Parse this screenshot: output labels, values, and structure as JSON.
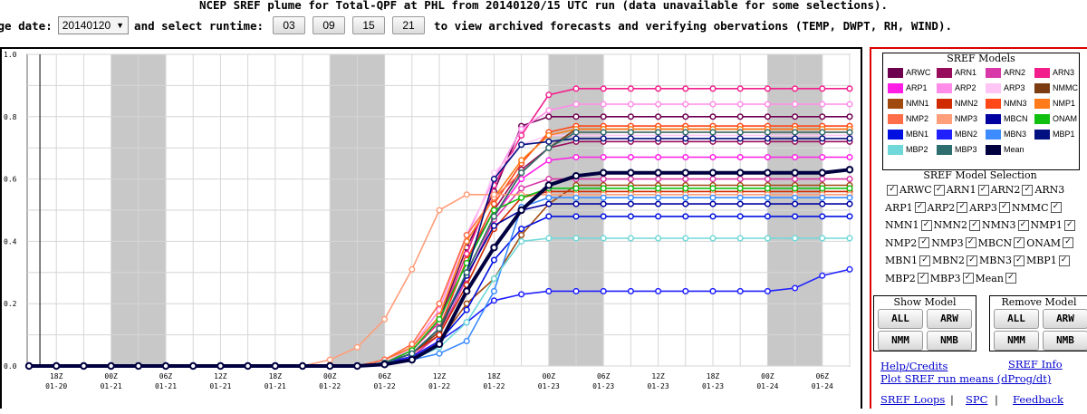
{
  "header": {
    "title": "NCEP SREF plume for Total-QPF at PHL from 20140120/15 UTC run (data unavailable for some selections).",
    "change_date_label": "nge date:",
    "date_value": "20140120",
    "select_runtime_label": "and select runtime:",
    "runtimes": [
      "03",
      "09",
      "15",
      "21"
    ],
    "view_text": "to view archived forecasts and verifying obervations (TEMP, DWPT, RH, WIND)."
  },
  "panel": {
    "models_title": "SREF Models",
    "models": [
      {
        "n": "ARWC",
        "c": "#6e0050"
      },
      {
        "n": "ARN1",
        "c": "#980c5c"
      },
      {
        "n": "ARN2",
        "c": "#d838a8"
      },
      {
        "n": "ARN3",
        "c": "#f21e8c"
      },
      {
        "n": "ARP1",
        "c": "#ff1ee6"
      },
      {
        "n": "ARP2",
        "c": "#ff8ce8"
      },
      {
        "n": "ARP3",
        "c": "#ffc6f5"
      },
      {
        "n": "NMMC",
        "c": "#7a3c10"
      },
      {
        "n": "NMN1",
        "c": "#a04a10"
      },
      {
        "n": "NMN2",
        "c": "#d02a00"
      },
      {
        "n": "NMN3",
        "c": "#ff4818"
      },
      {
        "n": "NMP1",
        "c": "#ff7a18"
      },
      {
        "n": "NMP2",
        "c": "#ff6e48"
      },
      {
        "n": "NMP3",
        "c": "#ff9e7a"
      },
      {
        "n": "MBCN",
        "c": "#0000a0"
      },
      {
        "n": "ONAM",
        "c": "#10c010"
      },
      {
        "n": "MBN1",
        "c": "#0010e0"
      },
      {
        "n": "MBN2",
        "c": "#2020ff"
      },
      {
        "n": "MBN3",
        "c": "#3c8cff"
      },
      {
        "n": "MBP1",
        "c": "#001080"
      },
      {
        "n": "MBP2",
        "c": "#70d8d8"
      },
      {
        "n": "MBP3",
        "c": "#2e6e6e"
      },
      {
        "n": "Mean",
        "c": "#000040"
      }
    ],
    "selection_title": "SREF Model Selection",
    "selection_rows": [
      [
        "ARWC",
        "ARN1",
        "ARN2",
        "ARN3"
      ],
      [
        "ARP1",
        "ARP2",
        "ARP3",
        "NMMC"
      ],
      [
        "NMN1",
        "NMN2",
        "NMN3",
        "NMP1"
      ],
      [
        "NMP2",
        "NMP3",
        "MBCN",
        "ONAM"
      ],
      [
        "MBN1",
        "MBN2",
        "MBN3",
        "MBP1"
      ],
      [
        "MBP2",
        "MBP3",
        "Mean"
      ]
    ],
    "show_model": {
      "title": "Show Model",
      "buttons": [
        "ALL",
        "ARW",
        "NMM",
        "NMB"
      ]
    },
    "remove_model": {
      "title": "Remove Model",
      "buttons": [
        "ALL",
        "ARW",
        "NMM",
        "NMB"
      ]
    },
    "links": {
      "help": "Help/Credits",
      "sref_info": "SREF Info",
      "run_means": "Plot SREF run means (dProg/dt)",
      "loops": "SREF Loops",
      "spc": "SPC",
      "feedback": "Feedback",
      "sep": "|"
    }
  },
  "chart_data": {
    "type": "line",
    "ylim": [
      0,
      1.0
    ],
    "yticks": [
      "0.0",
      "0.2",
      "0.4",
      "0.6",
      "0.8",
      "1.0"
    ],
    "xticks": [
      {
        "t": "18Z",
        "d": "01-20"
      },
      {
        "t": "00Z",
        "d": "01-21"
      },
      {
        "t": "06Z",
        "d": "01-21"
      },
      {
        "t": "12Z",
        "d": "01-21"
      },
      {
        "t": "18Z",
        "d": "01-21"
      },
      {
        "t": "00Z",
        "d": "01-22"
      },
      {
        "t": "06Z",
        "d": "01-22"
      },
      {
        "t": "12Z",
        "d": "01-22"
      },
      {
        "t": "18Z",
        "d": "01-22"
      },
      {
        "t": "00Z",
        "d": "01-23"
      },
      {
        "t": "06Z",
        "d": "01-23"
      },
      {
        "t": "12Z",
        "d": "01-23"
      },
      {
        "t": "18Z",
        "d": "01-23"
      },
      {
        "t": "00Z",
        "d": "01-24"
      },
      {
        "t": "06Z",
        "d": "01-24"
      }
    ],
    "x_hours": [
      0,
      3,
      6,
      9,
      12,
      15,
      18,
      21,
      24,
      27,
      30,
      33,
      36,
      39,
      42,
      45,
      48,
      51,
      54,
      57,
      60,
      63,
      66,
      69,
      72,
      75,
      78,
      81,
      84,
      87
    ],
    "shaded_bands": [
      [
        6,
        12
      ],
      [
        30,
        36
      ],
      [
        54,
        60
      ],
      [
        78,
        84
      ]
    ],
    "series": [
      {
        "name": "ARWC",
        "color": "#6e0050",
        "rise": [
          0,
          0,
          0.01,
          0.05,
          0.15,
          0.38,
          0.56,
          0.77,
          0.8
        ],
        "final": 0.8
      },
      {
        "name": "ARN1",
        "color": "#980c5c",
        "rise": [
          0,
          0,
          0.01,
          0.04,
          0.12,
          0.34,
          0.5,
          0.63,
          0.7
        ],
        "final": 0.72
      },
      {
        "name": "ARN2",
        "color": "#d838a8",
        "rise": [
          0,
          0,
          0.01,
          0.03,
          0.1,
          0.28,
          0.47,
          0.57,
          0.6
        ],
        "final": 0.6
      },
      {
        "name": "ARN3",
        "color": "#f21e8c",
        "rise": [
          0,
          0,
          0.01,
          0.05,
          0.14,
          0.36,
          0.58,
          0.74,
          0.87,
          0.89
        ],
        "final": 0.89
      },
      {
        "name": "ARP1",
        "color": "#ff1ee6",
        "rise": [
          0,
          0,
          0.01,
          0.04,
          0.12,
          0.3,
          0.48,
          0.6,
          0.66,
          0.67
        ],
        "final": 0.67
      },
      {
        "name": "ARP2",
        "color": "#ff8ce8",
        "rise": [
          0,
          0,
          0.01,
          0.06,
          0.18,
          0.42,
          0.6,
          0.76,
          0.82,
          0.84
        ],
        "final": 0.84
      },
      {
        "name": "ARP3",
        "color": "#ffc6f5",
        "rise": [
          0,
          0,
          0.01,
          0.05,
          0.16,
          0.4,
          0.62,
          0.71,
          0.74
        ],
        "final": 0.74
      },
      {
        "name": "NMMC",
        "color": "#7a3c10",
        "rise": [
          0,
          0,
          0.01,
          0.04,
          0.11,
          0.3,
          0.48,
          0.62,
          0.7
        ],
        "final": 0.76
      },
      {
        "name": "NMN1",
        "color": "#a04a10",
        "rise": [
          0,
          0,
          0.01,
          0.03,
          0.08,
          0.2,
          0.28,
          0.42,
          0.52,
          0.58
        ],
        "final": 0.58
      },
      {
        "name": "NMN2",
        "color": "#d02a00",
        "rise": [
          0,
          0,
          0.01,
          0.04,
          0.1,
          0.26,
          0.44,
          0.54,
          0.56
        ],
        "final": 0.56
      },
      {
        "name": "NMN3",
        "color": "#ff4818",
        "rise": [
          0,
          0,
          0.01,
          0.04,
          0.12,
          0.34,
          0.52,
          0.65,
          0.75
        ],
        "final": 0.77
      },
      {
        "name": "NMP1",
        "color": "#ff7a18",
        "rise": [
          0,
          0,
          0.02,
          0.06,
          0.16,
          0.4,
          0.54,
          0.66,
          0.74
        ],
        "final": 0.76
      },
      {
        "name": "NMP2",
        "color": "#ff6e48",
        "rise": [
          0,
          0,
          0.02,
          0.07,
          0.2,
          0.42,
          0.54,
          0.62,
          0.7
        ],
        "final": 0.75
      },
      {
        "name": "NMP3",
        "color": "#ff9e7a",
        "rise": [
          0.02,
          0.06,
          0.15,
          0.31,
          0.5,
          0.55,
          0.55
        ],
        "final": 0.55
      },
      {
        "name": "MBCN",
        "color": "#0000a0",
        "rise": [
          0,
          0,
          0.01,
          0.04,
          0.12,
          0.29,
          0.45,
          0.5,
          0.52
        ],
        "final": 0.52
      },
      {
        "name": "ONAM",
        "color": "#10c010",
        "rise": [
          0,
          0,
          0.01,
          0.05,
          0.15,
          0.33,
          0.5,
          0.54,
          0.57
        ],
        "final": 0.57
      },
      {
        "name": "MBN1",
        "color": "#0010e0",
        "rise": [
          0,
          0,
          0.01,
          0.03,
          0.08,
          0.18,
          0.34,
          0.44,
          0.48
        ],
        "final": 0.48
      },
      {
        "name": "MBN2",
        "color": "#2020ff",
        "rise": [
          0,
          0,
          0.01,
          0.03,
          0.08,
          0.14,
          0.21,
          0.23,
          0.24
        ],
        "final": 0.24
      },
      {
        "name": "MBN3",
        "color": "#3c8cff",
        "rise": [
          0,
          0,
          0.01,
          0.02,
          0.04,
          0.08,
          0.24,
          0.51,
          0.54
        ],
        "final": 0.54
      },
      {
        "name": "MBP1",
        "color": "#001080",
        "rise": [
          0,
          0,
          0.01,
          0.04,
          0.12,
          0.3,
          0.6,
          0.71,
          0.72
        ],
        "final": 0.73
      },
      {
        "name": "MBP2",
        "color": "#70d8d8",
        "rise": [
          0,
          0,
          0.01,
          0.02,
          0.06,
          0.14,
          0.28,
          0.4,
          0.41
        ],
        "final": 0.41
      },
      {
        "name": "MBP3",
        "color": "#2e6e6e",
        "rise": [
          0,
          0,
          0.01,
          0.04,
          0.12,
          0.3,
          0.48,
          0.62,
          0.7
        ],
        "final": 0.75
      },
      {
        "name": "Mean",
        "color": "#000040",
        "rise": [
          0,
          0,
          0.005,
          0.02,
          0.07,
          0.24,
          0.38,
          0.5,
          0.58,
          0.61
        ],
        "final": 0.62,
        "bold": true
      }
    ]
  }
}
